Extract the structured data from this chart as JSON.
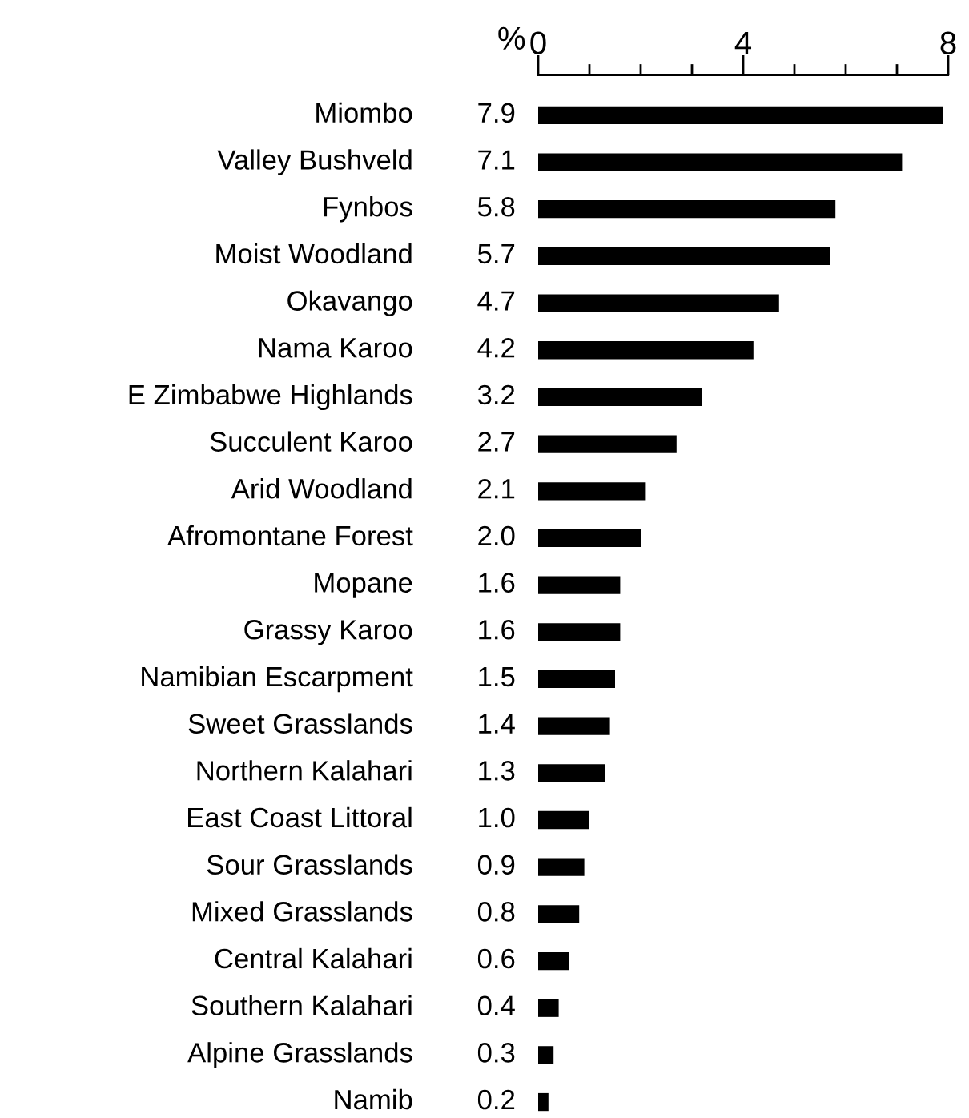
{
  "chart_data": {
    "type": "bar",
    "orientation": "horizontal",
    "xlabel": "%",
    "categories": [
      "Miombo",
      "Valley Bushveld",
      "Fynbos",
      "Moist Woodland",
      "Okavango",
      "Nama Karoo",
      "E Zimbabwe Highlands",
      "Succulent Karoo",
      "Arid Woodland",
      "Afromontane Forest",
      "Mopane",
      "Grassy Karoo",
      "Namibian Escarpment",
      "Sweet Grasslands",
      "Northern Kalahari",
      "East Coast Littoral",
      "Sour Grasslands",
      "Mixed Grasslands",
      "Central Kalahari",
      "Southern Kalahari",
      "Alpine Grasslands",
      "Namib"
    ],
    "values": [
      7.9,
      7.1,
      5.8,
      5.7,
      4.7,
      4.2,
      3.2,
      2.7,
      2.1,
      2.0,
      1.6,
      1.6,
      1.5,
      1.4,
      1.3,
      1.0,
      0.9,
      0.8,
      0.6,
      0.4,
      0.3,
      0.2
    ],
    "color": "#000000",
    "value_labels": [
      "7.9",
      "7.1",
      "5.8",
      "5.7",
      "4.7",
      "4.2",
      "3.2",
      "2.7",
      "2.1",
      "2.0",
      "1.6",
      "1.6",
      "1.5",
      "1.4",
      "1.3",
      "1.0",
      "0.9",
      "0.8",
      "0.6",
      "0.4",
      "0.3",
      "0.2"
    ],
    "grid": false,
    "legend": false,
    "xlim": [
      0,
      8
    ],
    "xticks": [
      0,
      {
        "value": 1,
        "label": null
      },
      {
        "value": 2,
        "label": null
      },
      {
        "value": 3,
        "label": null
      },
      4,
      {
        "value": 5,
        "label": null
      },
      {
        "value": 6,
        "label": null
      },
      {
        "value": 7,
        "label": null
      },
      8
    ]
  }
}
